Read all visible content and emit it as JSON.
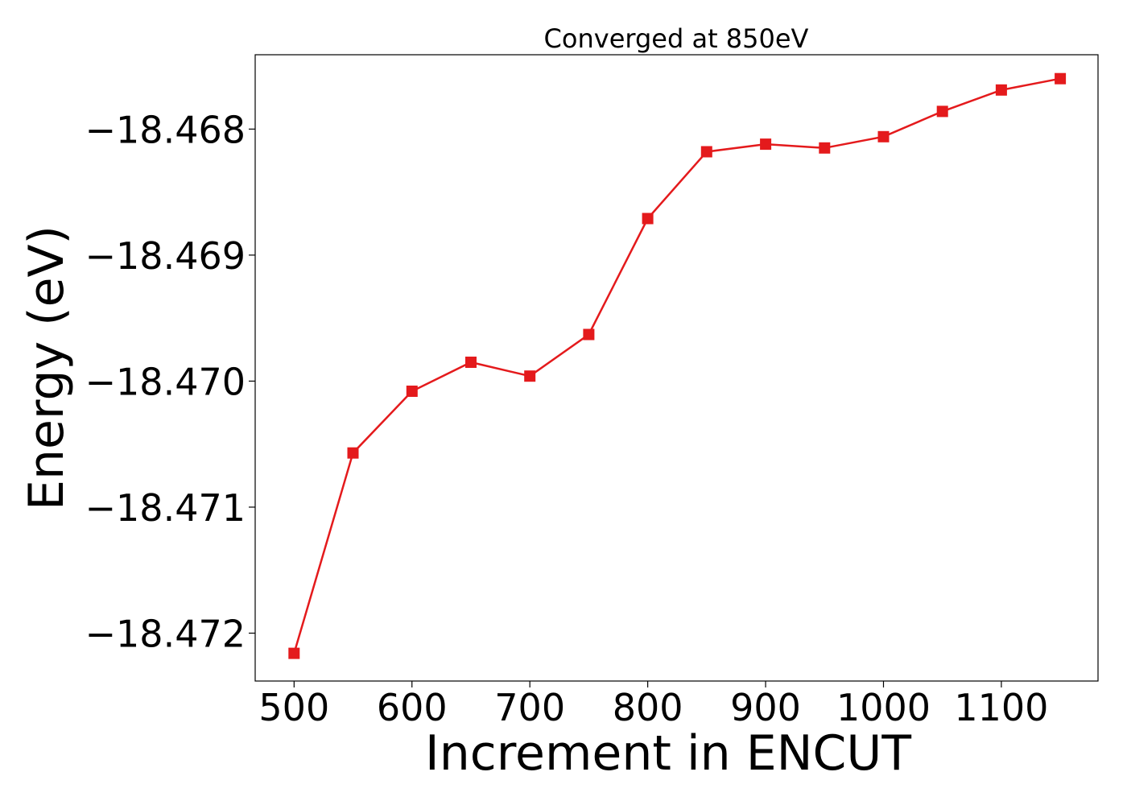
{
  "chart_data": {
    "type": "line",
    "title": "Converged at 850eV",
    "xlabel": "Increment in ENCUT",
    "ylabel": "Energy (eV)",
    "xlim": [
      467,
      1182
    ],
    "ylim": [
      -18.47238,
      -18.46741
    ],
    "x_ticks": [
      500,
      600,
      700,
      800,
      900,
      1000,
      1100
    ],
    "x_tick_labels": [
      "500",
      "600",
      "700",
      "800",
      "900",
      "1000",
      "1100"
    ],
    "y_ticks": [
      -18.468,
      -18.469,
      -18.47,
      -18.471,
      -18.472
    ],
    "y_tick_labels": [
      "−18.468",
      "−18.469",
      "−18.470",
      "−18.471",
      "−18.472"
    ],
    "grid": false,
    "series": [
      {
        "color": "#e41a1c",
        "marker": "square",
        "x": [
          500,
          550,
          600,
          650,
          700,
          750,
          800,
          850,
          900,
          950,
          1000,
          1050,
          1100,
          1150
        ],
        "y": [
          -18.47216,
          -18.47057,
          -18.47008,
          -18.46985,
          -18.46996,
          -18.46963,
          -18.46871,
          -18.46818,
          -18.46812,
          -18.46815,
          -18.46806,
          -18.46786,
          -18.46769,
          -18.4676
        ]
      }
    ]
  }
}
